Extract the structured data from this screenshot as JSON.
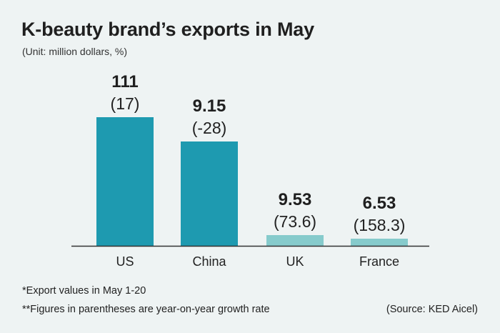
{
  "title": "K-beauty brand’s exports in May",
  "subtitle": "(Unit: million dollars, %)",
  "footnotes": [
    "*Export values in May 1-20",
    "**Figures in parentheses are year-on-year growth rate"
  ],
  "source": "(Source: KED Aicel)",
  "colors": {
    "bar_major": "#1e9ab0",
    "bar_minor": "#86cbcc",
    "axis": "#333333"
  },
  "chart_data": {
    "type": "bar",
    "categories": [
      "US",
      "China",
      "UK",
      "France"
    ],
    "values": [
      111,
      9.15,
      9.53,
      6.53
    ],
    "value_labels": [
      "111",
      "9.15",
      "9.53",
      "6.53"
    ],
    "growth_labels": [
      "(17)",
      "(-28)",
      "(73.6)",
      "(158.3)"
    ],
    "bar_colors": [
      "#1e9ab0",
      "#1e9ab0",
      "#86cbcc",
      "#86cbcc"
    ],
    "title": "K-beauty brand’s exports in May",
    "xlabel": "",
    "ylabel": "",
    "grid": false,
    "legend": "none"
  }
}
